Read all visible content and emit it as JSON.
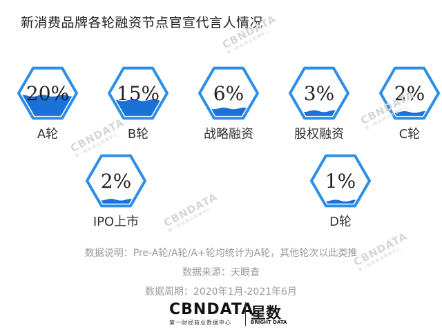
{
  "title": "新消费品牌各轮融资节点官宣代言人情况",
  "chart_data": {
    "type": "hexagon-percent",
    "items": [
      {
        "label": "A轮",
        "value": 20,
        "display": "20%"
      },
      {
        "label": "B轮",
        "value": 15,
        "display": "15%"
      },
      {
        "label": "战略融资",
        "value": 6,
        "display": "6%"
      },
      {
        "label": "股权融资",
        "value": 3,
        "display": "3%"
      },
      {
        "label": "C轮",
        "value": 2,
        "display": "2%"
      },
      {
        "label": "IPO上市",
        "value": 2,
        "display": "2%"
      },
      {
        "label": "D轮",
        "value": 1,
        "display": "1%"
      }
    ],
    "colors": {
      "stroke": "#2b8fe8",
      "wave": "#1a72d9",
      "text": "#333333"
    }
  },
  "notes": {
    "explain": "数据说明：Pre-A轮/A轮/A+轮均统计为A轮，其他轮次以此类推",
    "source": "数据来源：天眼查",
    "period": "数据周期：2020年1月-2021年6月"
  },
  "watermark": {
    "main": "CBNDATA",
    "sub": "第一财经商业数据中心"
  },
  "logo": {
    "main": "CBNDATA",
    "sub": "第一财经商业数据中心",
    "star": "星数",
    "star_sub": "BRIGHT DATA"
  }
}
